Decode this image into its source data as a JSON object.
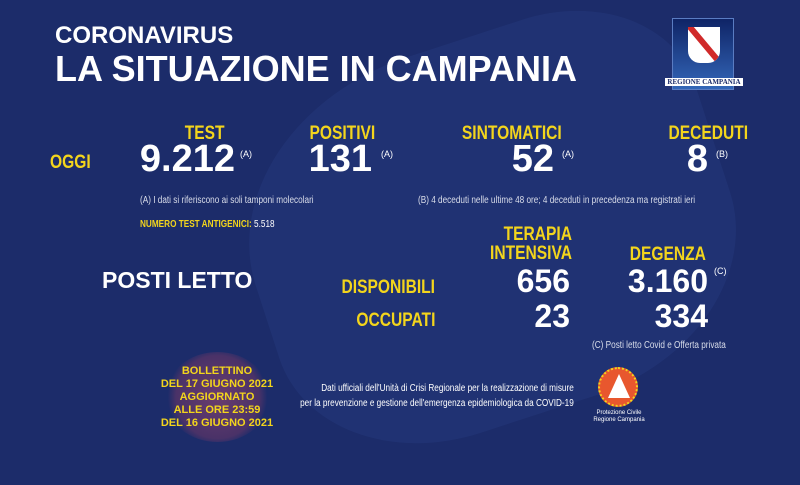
{
  "header": {
    "kicker": "CORONAVIRUS",
    "title": "LA SITUAZIONE IN CAMPANIA",
    "logo_text": "REGIONE CAMPANIA"
  },
  "today": {
    "row_label": "OGGI",
    "items": [
      {
        "label": "TEST",
        "value": "9.212",
        "note": "(A)"
      },
      {
        "label": "POSITIVI",
        "value": "131",
        "note": "(A)"
      },
      {
        "label": "SINTOMATICI",
        "value": "52",
        "note": "(A)"
      },
      {
        "label": "DECEDUTI",
        "value": "8",
        "note": "(B)"
      }
    ],
    "note_a": "(A) I dati si riferiscono ai soli tamponi molecolari",
    "note_b": "(B) 4 deceduti nelle ultime 48 ore; 4 deceduti in precedenza ma registrati ieri",
    "antigen_label": "NUMERO TEST ANTIGENICI:",
    "antigen_value": "5.518"
  },
  "beds": {
    "title": "POSTI LETTO",
    "col1": "TERAPIA INTENSIVA",
    "col2": "DEGENZA",
    "available_label": "DISPONIBILI",
    "occupied_label": "OCCUPATI",
    "ti_available": "656",
    "ti_occupied": "23",
    "deg_available": "3.160",
    "deg_note": "(C)",
    "deg_occupied": "334",
    "note_c": "(C) Posti letto Covid e Offerta privata"
  },
  "footer": {
    "bulletin": [
      "BOLLETTINO",
      "DEL 17 GIUGNO 2021",
      "AGGIORNATO",
      "ALLE ORE 23:59",
      "DEL 16 GIUGNO 2021"
    ],
    "source": [
      "Dati ufficiali dell'Unità di Crisi Regionale per la realizzazione di misure",
      "per la prevenzione e gestione dell'emergenza epidemiologica da COVID-19"
    ],
    "pc_logo": [
      "Protezione Civile",
      "Regione Campania"
    ]
  },
  "colors": {
    "background": "#1c2c6a",
    "accent": "#f3d51c"
  }
}
